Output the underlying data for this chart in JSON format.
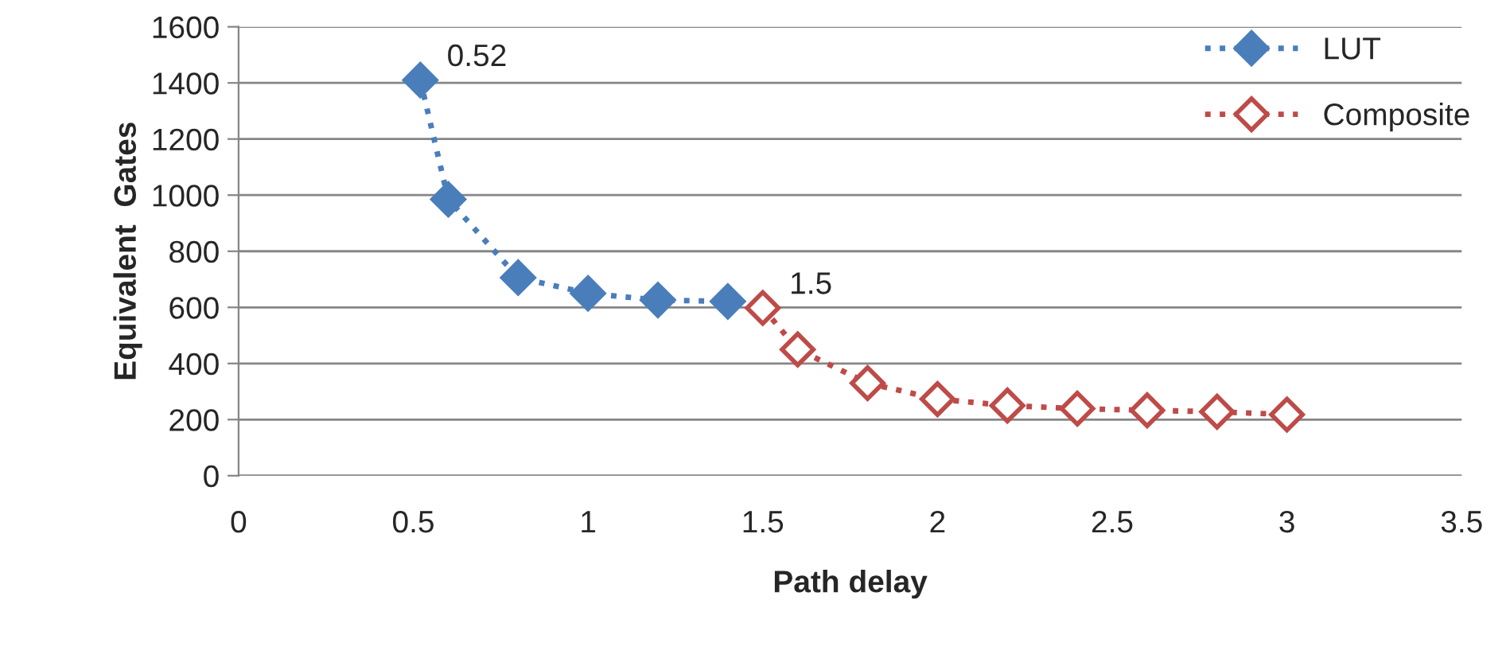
{
  "chart_data": {
    "type": "line",
    "xlabel": "Path delay",
    "ylabel": "Equivalent  Gates",
    "series": [
      {
        "name": "LUT",
        "color": "#4a7ebb",
        "x": [
          0.52,
          0.6,
          0.8,
          1,
          1.2,
          1.4
        ],
        "values": [
          1410,
          985,
          706,
          650,
          626,
          621
        ]
      },
      {
        "name": "Composite",
        "color": "#be4b48",
        "x": [
          1.5,
          1.6,
          1.8,
          2,
          2.2,
          2.4,
          2.6,
          2.8,
          3
        ],
        "values": [
          598,
          450,
          330,
          273,
          250,
          239,
          233,
          228,
          218
        ]
      }
    ],
    "xlim": [
      0,
      3.5
    ],
    "xticks": [
      0,
      0.5,
      1,
      1.5,
      2,
      2.5,
      3,
      3.5
    ],
    "ylim": [
      0,
      1600
    ],
    "yticks": [
      0,
      200,
      400,
      600,
      800,
      1000,
      1200,
      1400,
      1600
    ],
    "annotations": [
      {
        "text": "0.52",
        "x": 0.52,
        "y": 1410
      },
      {
        "text": "1.5",
        "x": 1.5,
        "y": 598
      }
    ],
    "grid": "y",
    "legend": "top right",
    "marker": "diamond",
    "line_style": "dotted"
  }
}
